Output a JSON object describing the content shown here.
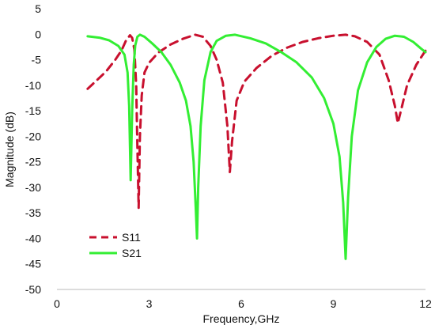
{
  "chart_data": {
    "type": "line",
    "title": "",
    "xlabel": "Frequency,GHz",
    "ylabel": "Magnitude (dB)",
    "xlim": [
      0,
      12
    ],
    "ylim": [
      -50,
      5
    ],
    "xticks": [
      0,
      3,
      6,
      9,
      12
    ],
    "yticks": [
      5,
      0,
      -5,
      -10,
      -15,
      -20,
      -25,
      -30,
      -35,
      -40,
      -45,
      -50
    ],
    "grid": false,
    "legend_position": "bottom-left",
    "series": [
      {
        "name": "S11",
        "color": "#c8102e",
        "dash": "dashed",
        "points": [
          [
            1.0,
            -10.7
          ],
          [
            1.3,
            -9.0
          ],
          [
            1.6,
            -7.3
          ],
          [
            1.9,
            -5.0
          ],
          [
            2.1,
            -3.2
          ],
          [
            2.25,
            -1.2
          ],
          [
            2.38,
            -0.2
          ],
          [
            2.45,
            -0.7
          ],
          [
            2.52,
            -3.0
          ],
          [
            2.58,
            -10.0
          ],
          [
            2.62,
            -22.0
          ],
          [
            2.66,
            -34.0
          ],
          [
            2.7,
            -20.0
          ],
          [
            2.76,
            -12.0
          ],
          [
            2.85,
            -7.5
          ],
          [
            3.0,
            -5.6
          ],
          [
            3.3,
            -3.6
          ],
          [
            3.7,
            -2.0
          ],
          [
            4.1,
            -0.9
          ],
          [
            4.5,
            -0.1
          ],
          [
            4.75,
            -0.5
          ],
          [
            5.0,
            -2.3
          ],
          [
            5.2,
            -5.0
          ],
          [
            5.4,
            -9.5
          ],
          [
            5.55,
            -18.0
          ],
          [
            5.63,
            -27.0
          ],
          [
            5.7,
            -21.0
          ],
          [
            5.85,
            -13.0
          ],
          [
            6.1,
            -9.3
          ],
          [
            6.5,
            -6.6
          ],
          [
            7.0,
            -4.2
          ],
          [
            7.5,
            -2.6
          ],
          [
            8.0,
            -1.5
          ],
          [
            8.5,
            -0.8
          ],
          [
            9.0,
            -0.3
          ],
          [
            9.4,
            -0.1
          ],
          [
            9.7,
            -0.4
          ],
          [
            10.1,
            -1.5
          ],
          [
            10.5,
            -4.0
          ],
          [
            10.8,
            -9.0
          ],
          [
            11.0,
            -14.0
          ],
          [
            11.1,
            -17.4
          ],
          [
            11.2,
            -15.0
          ],
          [
            11.4,
            -10.0
          ],
          [
            11.7,
            -6.0
          ],
          [
            12.0,
            -3.2
          ]
        ]
      },
      {
        "name": "S21",
        "color": "#33ee33",
        "dash": "solid",
        "points": [
          [
            1.0,
            -0.4
          ],
          [
            1.4,
            -0.7
          ],
          [
            1.7,
            -1.2
          ],
          [
            2.0,
            -2.3
          ],
          [
            2.2,
            -4.0
          ],
          [
            2.3,
            -7.5
          ],
          [
            2.35,
            -14.0
          ],
          [
            2.4,
            -28.6
          ],
          [
            2.45,
            -15.0
          ],
          [
            2.5,
            -6.0
          ],
          [
            2.55,
            -2.2
          ],
          [
            2.62,
            -0.5
          ],
          [
            2.7,
            -0.1
          ],
          [
            2.85,
            -0.5
          ],
          [
            3.1,
            -1.8
          ],
          [
            3.4,
            -3.5
          ],
          [
            3.7,
            -6.0
          ],
          [
            4.0,
            -9.5
          ],
          [
            4.2,
            -13.0
          ],
          [
            4.35,
            -18.0
          ],
          [
            4.45,
            -25.0
          ],
          [
            4.52,
            -34.0
          ],
          [
            4.56,
            -40.0
          ],
          [
            4.6,
            -30.0
          ],
          [
            4.68,
            -18.0
          ],
          [
            4.8,
            -9.0
          ],
          [
            5.0,
            -3.5
          ],
          [
            5.2,
            -1.3
          ],
          [
            5.5,
            -0.3
          ],
          [
            5.8,
            -0.1
          ],
          [
            6.3,
            -0.8
          ],
          [
            6.8,
            -1.8
          ],
          [
            7.3,
            -3.5
          ],
          [
            7.8,
            -5.5
          ],
          [
            8.3,
            -8.5
          ],
          [
            8.7,
            -12.5
          ],
          [
            9.0,
            -17.5
          ],
          [
            9.2,
            -24.0
          ],
          [
            9.32,
            -33.0
          ],
          [
            9.4,
            -44.0
          ],
          [
            9.48,
            -32.0
          ],
          [
            9.6,
            -20.0
          ],
          [
            9.8,
            -11.0
          ],
          [
            10.1,
            -5.5
          ],
          [
            10.4,
            -2.5
          ],
          [
            10.7,
            -0.9
          ],
          [
            11.0,
            -0.3
          ],
          [
            11.3,
            -0.5
          ],
          [
            11.6,
            -1.5
          ],
          [
            11.85,
            -2.8
          ],
          [
            12.0,
            -3.5
          ]
        ]
      }
    ]
  }
}
